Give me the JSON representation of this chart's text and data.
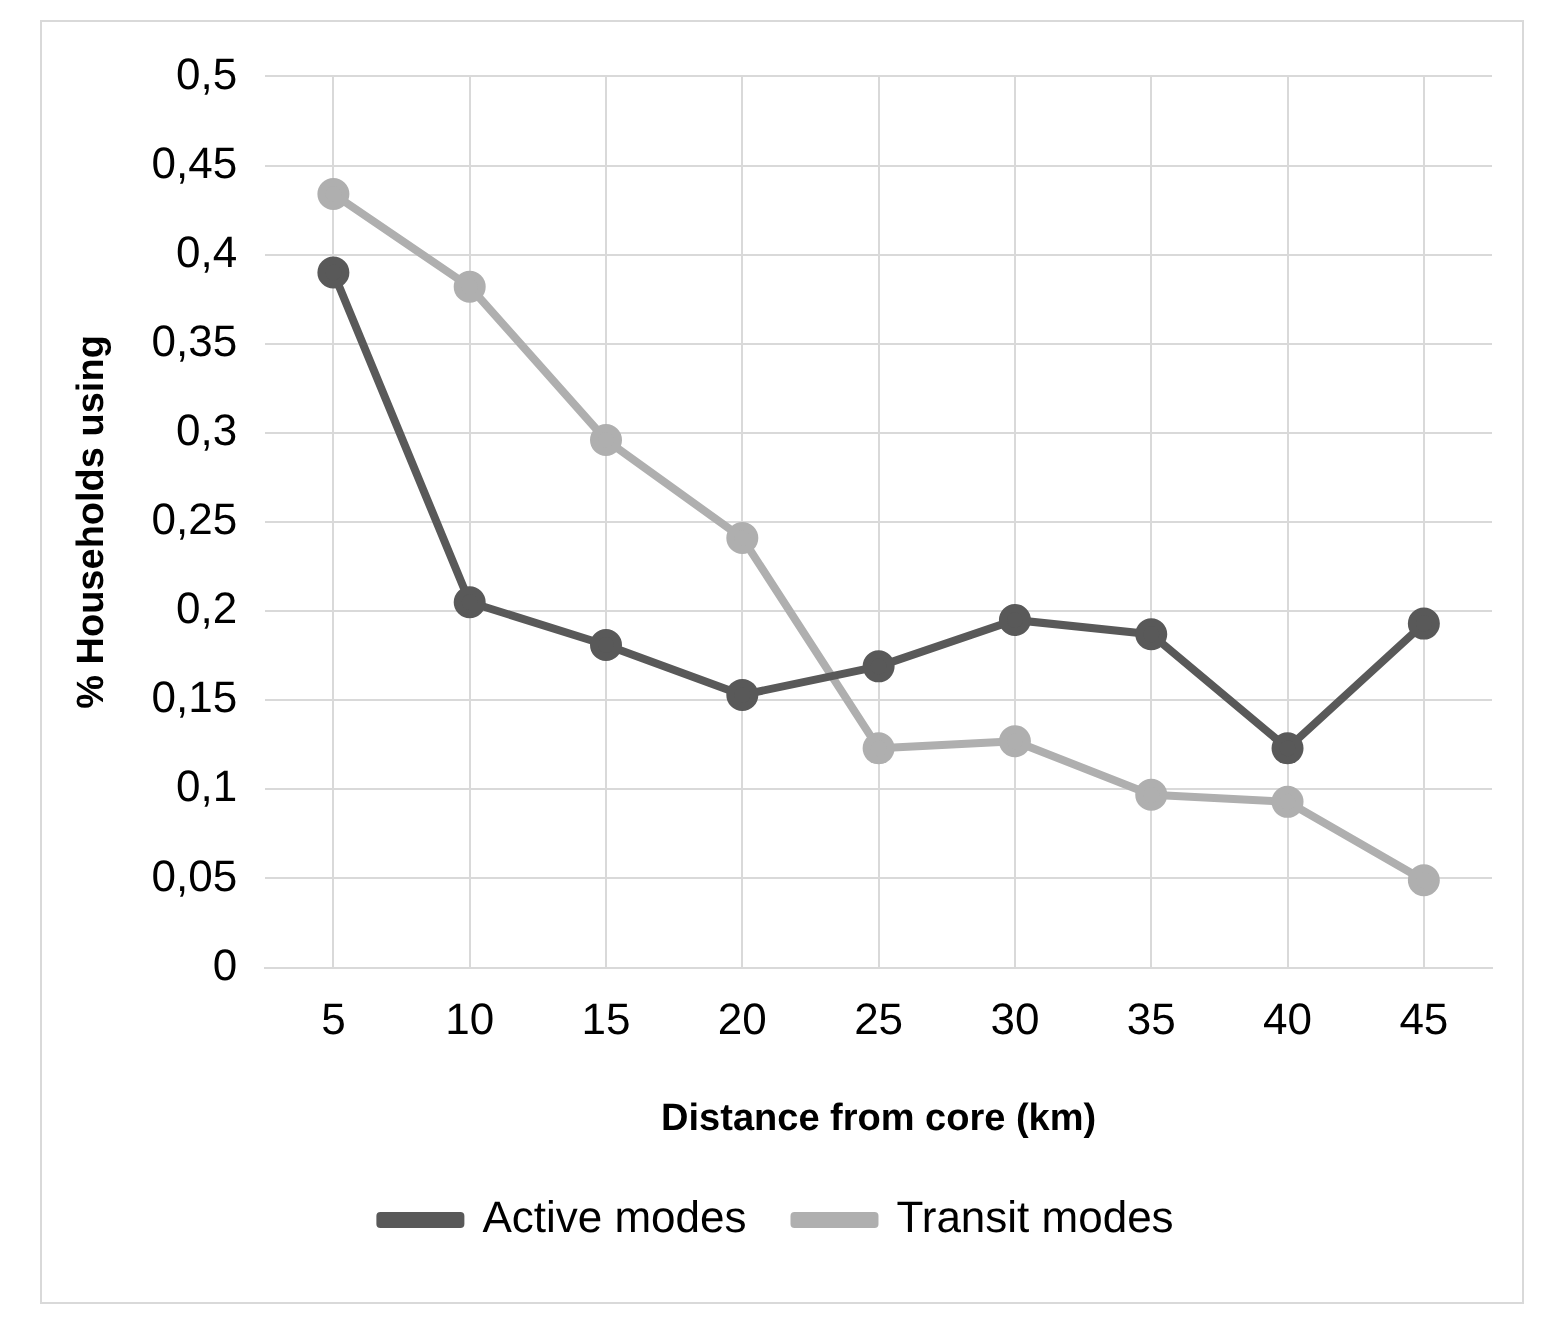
{
  "chart_data": {
    "type": "line",
    "xlabel": "Distance from core (km)",
    "ylabel": "% Households using",
    "categories": [
      "5",
      "10",
      "15",
      "20",
      "25",
      "30",
      "35",
      "40",
      "45"
    ],
    "series": [
      {
        "name": "Active modes",
        "color": "#595959",
        "values": [
          0.39,
          0.205,
          0.181,
          0.153,
          0.169,
          0.195,
          0.187,
          0.123,
          0.193
        ]
      },
      {
        "name": "Transit modes",
        "color": "#afafaf",
        "values": [
          0.434,
          0.382,
          0.296,
          0.241,
          0.123,
          0.127,
          0.097,
          0.093,
          0.049
        ]
      }
    ],
    "ylim": [
      0,
      0.5
    ],
    "yticks": [
      {
        "value": 0,
        "label": "0"
      },
      {
        "value": 0.05,
        "label": "0,05"
      },
      {
        "value": 0.1,
        "label": "0,1"
      },
      {
        "value": 0.15,
        "label": "0,15"
      },
      {
        "value": 0.2,
        "label": "0,2"
      },
      {
        "value": 0.25,
        "label": "0,25"
      },
      {
        "value": 0.3,
        "label": "0,3"
      },
      {
        "value": 0.35,
        "label": "0,35"
      },
      {
        "value": 0.4,
        "label": "0,4"
      },
      {
        "value": 0.45,
        "label": "0,45"
      },
      {
        "value": 0.5,
        "label": "0,5"
      }
    ],
    "grid": true,
    "legend": "bottom",
    "marker": "circle",
    "line_style": "solid"
  }
}
